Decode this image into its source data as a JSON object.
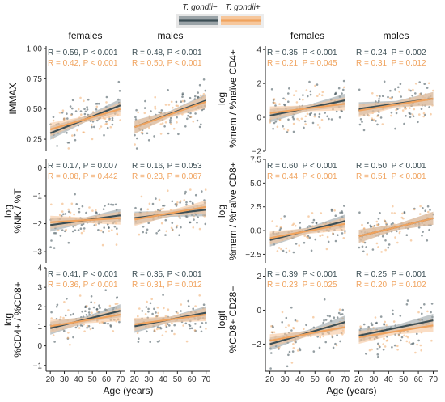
{
  "legend": {
    "items": [
      {
        "label": "T. gondii−",
        "color": "#3d4f55",
        "band": "#9aa3a7"
      },
      {
        "label": "T. gondii+",
        "color": "#f0a35e",
        "band": "#f6c79c"
      }
    ]
  },
  "chart_data": [
    {
      "type": "scatter",
      "group": "left",
      "row": 1,
      "ylabel": [
        "IMMAX"
      ],
      "ylim": [
        0.15,
        1.02
      ],
      "yticks": [
        {
          "v": 0.25,
          "t": "0.25"
        },
        {
          "v": 0.5,
          "t": "0.50"
        },
        {
          "v": 0.75,
          "t": "0.75"
        },
        {
          "v": 1.0,
          "t": "1.00"
        }
      ],
      "panels": [
        {
          "strip": "females",
          "stat_neg": "R = 0.59, P < 0.001",
          "stat_pos": "R = 0.42, P < 0.001",
          "series": [
            {
              "name": "T. gondii−",
              "x": [
                20,
                70
              ],
              "y": [
                0.3,
                0.53
              ]
            },
            {
              "name": "T. gondii+",
              "x": [
                20,
                70
              ],
              "y": [
                0.33,
                0.5
              ]
            }
          ]
        },
        {
          "strip": "males",
          "stat_neg": "R = 0.48, P < 0.001",
          "stat_pos": "R = 0.50, P < 0.001",
          "series": [
            {
              "name": "T. gondii−",
              "x": [
                20,
                70
              ],
              "y": [
                0.35,
                0.57
              ]
            },
            {
              "name": "T. gondii+",
              "x": [
                20,
                70
              ],
              "y": [
                0.35,
                0.56
              ]
            }
          ]
        }
      ]
    },
    {
      "type": "scatter",
      "group": "left",
      "row": 2,
      "ylabel": [
        "log",
        "%NK / %T"
      ],
      "ylim": [
        -3.4,
        0.3
      ],
      "yticks": [
        {
          "v": -3,
          "t": "−3"
        },
        {
          "v": -2,
          "t": "−2"
        },
        {
          "v": -1,
          "t": "−1"
        },
        {
          "v": 0,
          "t": "0"
        }
      ],
      "panels": [
        {
          "strip": "",
          "stat_neg": "R = 0.17, P = 0.007",
          "stat_pos": "R = 0.08, P = 0.442",
          "series": [
            {
              "name": "T. gondii−",
              "x": [
                20,
                70
              ],
              "y": [
                -2.05,
                -1.7
              ]
            },
            {
              "name": "T. gondii+",
              "x": [
                20,
                70
              ],
              "y": [
                -1.95,
                -1.8
              ]
            }
          ]
        },
        {
          "strip": "",
          "stat_neg": "R = 0.16, P = 0.053",
          "stat_pos": "R = 0.23, P = 0.067",
          "series": [
            {
              "name": "T. gondii−",
              "x": [
                20,
                70
              ],
              "y": [
                -1.8,
                -1.5
              ]
            },
            {
              "name": "T. gondii+",
              "x": [
                20,
                70
              ],
              "y": [
                -1.85,
                -1.4
              ]
            }
          ]
        }
      ]
    },
    {
      "type": "scatter",
      "group": "left",
      "row": 3,
      "ylabel": [
        "log",
        "%CD4+ / %CD8+"
      ],
      "ylim": [
        -1.3,
        4.0
      ],
      "yticks": [
        {
          "v": -1,
          "t": "−1"
        },
        {
          "v": 0,
          "t": "0"
        },
        {
          "v": 1,
          "t": "1"
        },
        {
          "v": 2,
          "t": "2"
        },
        {
          "v": 3,
          "t": "3"
        },
        {
          "v": 4,
          "t": "4"
        }
      ],
      "panels": [
        {
          "strip": "",
          "stat_neg": "R = 0.41, P < 0.001",
          "stat_pos": "R = 0.36, P < 0.001",
          "series": [
            {
              "name": "T. gondii−",
              "x": [
                20,
                70
              ],
              "y": [
                0.9,
                1.8
              ]
            },
            {
              "name": "T. gondii+",
              "x": [
                20,
                70
              ],
              "y": [
                1.0,
                1.6
              ]
            }
          ]
        },
        {
          "strip": "",
          "stat_neg": "R = 0.35, P < 0.001",
          "stat_pos": "R = 0.31, P = 0.012",
          "series": [
            {
              "name": "T. gondii−",
              "x": [
                20,
                70
              ],
              "y": [
                1.0,
                1.7
              ]
            },
            {
              "name": "T. gondii+",
              "x": [
                20,
                70
              ],
              "y": [
                1.1,
                1.6
              ]
            }
          ]
        }
      ]
    },
    {
      "type": "scatter",
      "group": "right",
      "row": 1,
      "ylabel": [
        "log",
        "%mem / %naïve CD4+"
      ],
      "ylim": [
        -2.0,
        4.2
      ],
      "yticks": [
        {
          "v": -2,
          "t": "−2"
        },
        {
          "v": 0,
          "t": "0"
        },
        {
          "v": 2,
          "t": "2"
        },
        {
          "v": 4,
          "t": "4"
        }
      ],
      "panels": [
        {
          "strip": "females",
          "stat_neg": "R = 0.35, P < 0.001",
          "stat_pos": "R = 0.21, P = 0.045",
          "series": [
            {
              "name": "T. gondii−",
              "x": [
                20,
                70
              ],
              "y": [
                0.1,
                1.0
              ]
            },
            {
              "name": "T. gondii+",
              "x": [
                20,
                70
              ],
              "y": [
                0.25,
                0.8
              ]
            }
          ]
        },
        {
          "strip": "males",
          "stat_neg": "R = 0.24, P = 0.002",
          "stat_pos": "R = 0.31, P = 0.012",
          "series": [
            {
              "name": "T. gondii−",
              "x": [
                20,
                70
              ],
              "y": [
                0.5,
                1.1
              ]
            },
            {
              "name": "T. gondii+",
              "x": [
                20,
                70
              ],
              "y": [
                0.4,
                1.1
              ]
            }
          ]
        }
      ]
    },
    {
      "type": "scatter",
      "group": "right",
      "row": 2,
      "ylabel": [
        "log",
        "%mem / %naïve CD8+"
      ],
      "ylim": [
        -3.4,
        7.5
      ],
      "yticks": [
        {
          "v": -2.5,
          "t": "−2.5"
        },
        {
          "v": 0,
          "t": "0.0"
        },
        {
          "v": 2.5,
          "t": "2.5"
        },
        {
          "v": 5,
          "t": "5.0"
        },
        {
          "v": 7.5,
          "t": "7.5"
        }
      ],
      "panels": [
        {
          "strip": "",
          "stat_neg": "R = 0.60, P < 0.001",
          "stat_pos": "R = 0.44, P < 0.001",
          "series": [
            {
              "name": "T. gondii−",
              "x": [
                20,
                70
              ],
              "y": [
                -1.0,
                1.0
              ]
            },
            {
              "name": "T. gondii+",
              "x": [
                20,
                70
              ],
              "y": [
                -0.8,
                0.7
              ]
            }
          ]
        },
        {
          "strip": "",
          "stat_neg": "R = 0.50, P < 0.001",
          "stat_pos": "R = 0.51, P < 0.001",
          "series": [
            {
              "name": "T. gondii−",
              "x": [
                20,
                70
              ],
              "y": [
                -0.6,
                1.3
              ]
            },
            {
              "name": "T. gondii+",
              "x": [
                20,
                70
              ],
              "y": [
                -0.6,
                1.3
              ]
            }
          ]
        }
      ]
    },
    {
      "type": "scatter",
      "group": "right",
      "row": 3,
      "ylabel": [
        "logit",
        "%CD8+ CD28−"
      ],
      "ylim": [
        -3.6,
        2.5
      ],
      "yticks": [
        {
          "v": -2,
          "t": "−2"
        },
        {
          "v": 0,
          "t": "0"
        },
        {
          "v": 2,
          "t": "2"
        }
      ],
      "panels": [
        {
          "strip": "",
          "stat_neg": "R = 0.39, P < 0.001",
          "stat_pos": "R = 0.23, P = 0.025",
          "series": [
            {
              "name": "T. gondii−",
              "x": [
                20,
                70
              ],
              "y": [
                -2.0,
                -0.7
              ]
            },
            {
              "name": "T. gondii+",
              "x": [
                20,
                70
              ],
              "y": [
                -1.8,
                -1.0
              ]
            }
          ]
        },
        {
          "strip": "",
          "stat_neg": "R = 0.25, P = 0.001",
          "stat_pos": "R = 0.20, P = 0.102",
          "series": [
            {
              "name": "T. gondii−",
              "x": [
                20,
                70
              ],
              "y": [
                -1.5,
                -0.6
              ]
            },
            {
              "name": "T. gondii+",
              "x": [
                20,
                70
              ],
              "y": [
                -1.6,
                -0.9
              ]
            }
          ]
        }
      ]
    }
  ],
  "axes": {
    "xlabel": "Age (years)",
    "xlim": [
      17,
      73
    ],
    "xticks": [
      {
        "v": 20,
        "t": "20"
      },
      {
        "v": 30,
        "t": "30"
      },
      {
        "v": 40,
        "t": "40"
      },
      {
        "v": 50,
        "t": "50"
      },
      {
        "v": 60,
        "t": "60"
      },
      {
        "v": 70,
        "t": "70"
      }
    ]
  }
}
